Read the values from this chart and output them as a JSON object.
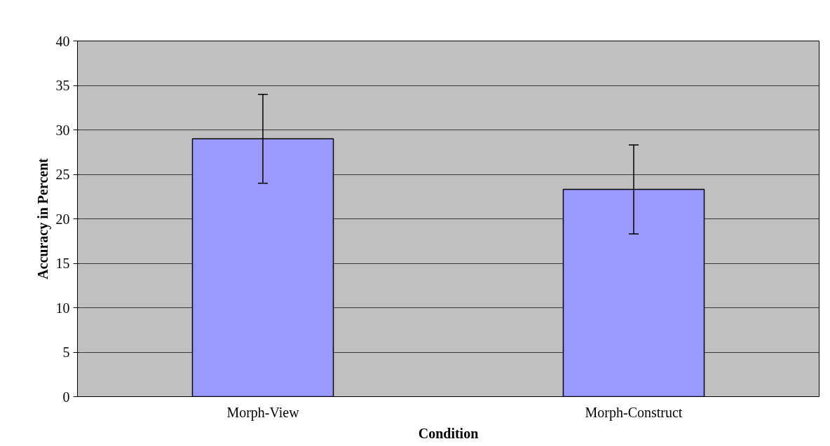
{
  "chart_data": {
    "type": "bar",
    "xlabel": "Condition",
    "ylabel": "Accuracy in Percent",
    "categories": [
      "Morph-View",
      "Morph-Construct"
    ],
    "values": [
      29.0,
      23.3
    ],
    "errors": [
      5.0,
      5.0
    ],
    "color": "#9999ff",
    "ylim": [
      0,
      40
    ],
    "yticks": [
      0,
      5,
      10,
      15,
      20,
      25,
      30,
      35,
      40
    ],
    "grid": "y"
  }
}
